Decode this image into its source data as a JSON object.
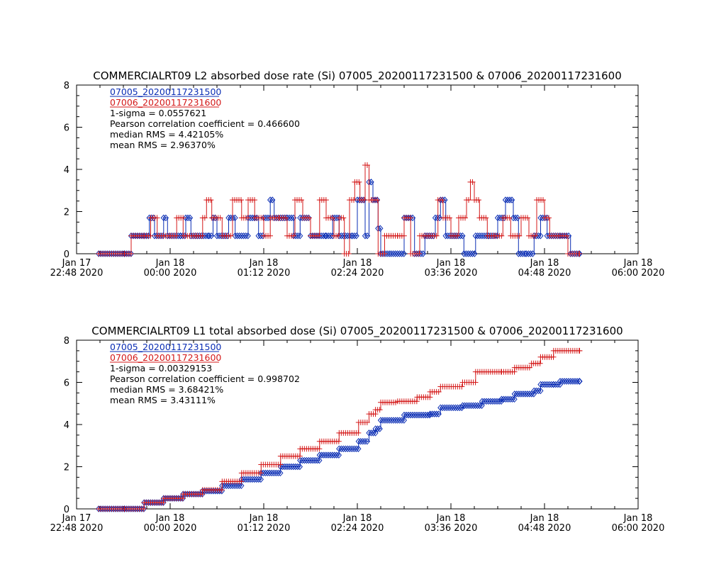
{
  "chart_data": [
    {
      "type": "line",
      "title": "COMMERCIALRT09 L2 absorbed dose rate (Si) 07005_20200117231500 & 07006_20200117231600",
      "ylim": [
        0,
        8
      ],
      "y_ticks": [
        "0",
        "2",
        "4",
        "6",
        "8"
      ],
      "x_range": [
        "2020-01-17 22:48",
        "2020-01-18 06:00"
      ],
      "x_ticks": [
        {
          "t": "2020-01-17 22:48",
          "line1": "Jan 17",
          "line2": "22:48 2020"
        },
        {
          "t": "2020-01-18 00:00",
          "line1": "Jan 18",
          "line2": "00:00 2020"
        },
        {
          "t": "2020-01-18 01:12",
          "line1": "Jan 18",
          "line2": "01:12 2020"
        },
        {
          "t": "2020-01-18 02:24",
          "line1": "Jan 18",
          "line2": "02:24 2020"
        },
        {
          "t": "2020-01-18 03:36",
          "line1": "Jan 18",
          "line2": "03:36 2020"
        },
        {
          "t": "2020-01-18 04:48",
          "line1": "Jan 18",
          "line2": "04:48 2020"
        },
        {
          "t": "2020-01-18 06:00",
          "line1": "Jan 18",
          "line2": "06:00 2020"
        }
      ],
      "annotations": [
        "1-sigma = 0.0557621",
        "Pearson correlation coefficient = 0.466600",
        "median RMS = 4.42105%",
        "mean RMS = 2.96370%"
      ],
      "series": [
        {
          "name": "07005_20200117231500",
          "color": "#0a2db4",
          "marker": "diamond",
          "points": [
            [
              "2020-01-17 23:05",
              0
            ],
            [
              "2020-01-17 23:25",
              0
            ],
            [
              "2020-01-17 23:30",
              0.85
            ],
            [
              "2020-01-17 23:40",
              0.85
            ],
            [
              "2020-01-17 23:44",
              1.7
            ],
            [
              "2020-01-17 23:48",
              0.85
            ],
            [
              "2020-01-17 23:55",
              1.7
            ],
            [
              "2020-01-17 23:58",
              0.85
            ],
            [
              "2020-01-18 00:08",
              0.85
            ],
            [
              "2020-01-18 00:12",
              1.7
            ],
            [
              "2020-01-18 00:16",
              0.85
            ],
            [
              "2020-01-18 00:30",
              0.85
            ],
            [
              "2020-01-18 00:33",
              1.7
            ],
            [
              "2020-01-18 00:36",
              0.85
            ],
            [
              "2020-01-18 00:45",
              1.7
            ],
            [
              "2020-01-18 00:50",
              0.85
            ],
            [
              "2020-01-18 01:00",
              1.7
            ],
            [
              "2020-01-18 01:05",
              1.7
            ],
            [
              "2020-01-18 01:08",
              0.85
            ],
            [
              "2020-01-18 01:12",
              1.7
            ],
            [
              "2020-01-18 01:17",
              2.55
            ],
            [
              "2020-01-18 01:20",
              1.7
            ],
            [
              "2020-01-18 01:30",
              1.7
            ],
            [
              "2020-01-18 01:35",
              0.85
            ],
            [
              "2020-01-18 01:40",
              1.7
            ],
            [
              "2020-01-18 01:48",
              0.85
            ],
            [
              "2020-01-18 02:00",
              0.85
            ],
            [
              "2020-01-18 02:05",
              1.7
            ],
            [
              "2020-01-18 02:10",
              0.85
            ],
            [
              "2020-01-18 02:20",
              0.85
            ],
            [
              "2020-01-18 02:24",
              2.55
            ],
            [
              "2020-01-18 02:30",
              0.85
            ],
            [
              "2020-01-18 02:33",
              3.4
            ],
            [
              "2020-01-18 02:36",
              2.55
            ],
            [
              "2020-01-18 02:40",
              1.2
            ],
            [
              "2020-01-18 02:42",
              0
            ],
            [
              "2020-01-18 02:50",
              0
            ],
            [
              "2020-01-18 03:00",
              1.7
            ],
            [
              "2020-01-18 03:08",
              0
            ],
            [
              "2020-01-18 03:16",
              0.85
            ],
            [
              "2020-01-18 03:24",
              1.7
            ],
            [
              "2020-01-18 03:28",
              2.55
            ],
            [
              "2020-01-18 03:32",
              0.85
            ],
            [
              "2020-01-18 03:40",
              0.85
            ],
            [
              "2020-01-18 03:46",
              0
            ],
            [
              "2020-01-18 03:55",
              0.85
            ],
            [
              "2020-01-18 04:05",
              0.85
            ],
            [
              "2020-01-18 04:12",
              1.7
            ],
            [
              "2020-01-18 04:18",
              2.55
            ],
            [
              "2020-01-18 04:24",
              1.7
            ],
            [
              "2020-01-18 04:28",
              0
            ],
            [
              "2020-01-18 04:34",
              0
            ],
            [
              "2020-01-18 04:40",
              0.85
            ],
            [
              "2020-01-18 04:45",
              1.7
            ],
            [
              "2020-01-18 04:50",
              0.85
            ],
            [
              "2020-01-18 05:00",
              0.85
            ],
            [
              "2020-01-18 05:08",
              0
            ],
            [
              "2020-01-18 05:15",
              0
            ]
          ]
        },
        {
          "name": "07006_20200117231600",
          "color": "#d41919",
          "marker": "plus",
          "points": [
            [
              "2020-01-17 23:05",
              0
            ],
            [
              "2020-01-17 23:25",
              0
            ],
            [
              "2020-01-17 23:30",
              0.85
            ],
            [
              "2020-01-17 23:40",
              0.85
            ],
            [
              "2020-01-17 23:45",
              1.7
            ],
            [
              "2020-01-17 23:50",
              0.85
            ],
            [
              "2020-01-18 00:00",
              0.85
            ],
            [
              "2020-01-18 00:05",
              1.7
            ],
            [
              "2020-01-18 00:10",
              0.85
            ],
            [
              "2020-01-18 00:20",
              0.85
            ],
            [
              "2020-01-18 00:25",
              1.7
            ],
            [
              "2020-01-18 00:28",
              2.55
            ],
            [
              "2020-01-18 00:32",
              1.7
            ],
            [
              "2020-01-18 00:40",
              0.85
            ],
            [
              "2020-01-18 00:48",
              2.55
            ],
            [
              "2020-01-18 00:55",
              1.7
            ],
            [
              "2020-01-18 01:00",
              2.55
            ],
            [
              "2020-01-18 01:05",
              1.7
            ],
            [
              "2020-01-18 01:12",
              0.85
            ],
            [
              "2020-01-18 01:17",
              1.7
            ],
            [
              "2020-01-18 01:24",
              1.7
            ],
            [
              "2020-01-18 01:30",
              0.85
            ],
            [
              "2020-01-18 01:36",
              2.55
            ],
            [
              "2020-01-18 01:42",
              1.7
            ],
            [
              "2020-01-18 01:48",
              0.85
            ],
            [
              "2020-01-18 01:55",
              2.55
            ],
            [
              "2020-01-18 02:00",
              1.7
            ],
            [
              "2020-01-18 02:06",
              0.85
            ],
            [
              "2020-01-18 02:10",
              1.7
            ],
            [
              "2020-01-18 02:14",
              0
            ],
            [
              "2020-01-18 02:18",
              2.55
            ],
            [
              "2020-01-18 02:22",
              3.4
            ],
            [
              "2020-01-18 02:26",
              2.55
            ],
            [
              "2020-01-18 02:30",
              4.2
            ],
            [
              "2020-01-18 02:33",
              2.55
            ],
            [
              "2020-01-18 02:36",
              2.55
            ],
            [
              "2020-01-18 02:40",
              0
            ],
            [
              "2020-01-18 02:45",
              0.85
            ],
            [
              "2020-01-18 02:55",
              0.85
            ],
            [
              "2020-01-18 03:00",
              1.7
            ],
            [
              "2020-01-18 03:05",
              0
            ],
            [
              "2020-01-18 03:12",
              0.85
            ],
            [
              "2020-01-18 03:20",
              0.85
            ],
            [
              "2020-01-18 03:26",
              2.55
            ],
            [
              "2020-01-18 03:30",
              1.7
            ],
            [
              "2020-01-18 03:36",
              0.85
            ],
            [
              "2020-01-18 03:42",
              1.7
            ],
            [
              "2020-01-18 03:48",
              2.55
            ],
            [
              "2020-01-18 03:51",
              3.4
            ],
            [
              "2020-01-18 03:54",
              2.55
            ],
            [
              "2020-01-18 03:58",
              1.7
            ],
            [
              "2020-01-18 04:04",
              0.85
            ],
            [
              "2020-01-18 04:10",
              0.85
            ],
            [
              "2020-01-18 04:16",
              1.7
            ],
            [
              "2020-01-18 04:22",
              0.85
            ],
            [
              "2020-01-18 04:30",
              1.7
            ],
            [
              "2020-01-18 04:36",
              0.85
            ],
            [
              "2020-01-18 04:42",
              2.55
            ],
            [
              "2020-01-18 04:48",
              1.7
            ],
            [
              "2020-01-18 04:52",
              0.85
            ],
            [
              "2020-01-18 05:00",
              0.85
            ],
            [
              "2020-01-18 05:06",
              0
            ],
            [
              "2020-01-18 05:15",
              0
            ]
          ]
        }
      ]
    },
    {
      "type": "line",
      "title": "COMMERCIALRT09 L1 total absorbed dose (Si) 07005_20200117231500 & 07006_20200117231600",
      "ylim": [
        0,
        8
      ],
      "y_ticks": [
        "0",
        "2",
        "4",
        "6",
        "8"
      ],
      "x_range": [
        "2020-01-17 22:48",
        "2020-01-18 06:00"
      ],
      "x_ticks": [
        {
          "t": "2020-01-17 22:48",
          "line1": "Jan 17",
          "line2": "22:48 2020"
        },
        {
          "t": "2020-01-18 00:00",
          "line1": "Jan 18",
          "line2": "00:00 2020"
        },
        {
          "t": "2020-01-18 01:12",
          "line1": "Jan 18",
          "line2": "01:12 2020"
        },
        {
          "t": "2020-01-18 02:24",
          "line1": "Jan 18",
          "line2": "02:24 2020"
        },
        {
          "t": "2020-01-18 03:36",
          "line1": "Jan 18",
          "line2": "03:36 2020"
        },
        {
          "t": "2020-01-18 04:48",
          "line1": "Jan 18",
          "line2": "04:48 2020"
        },
        {
          "t": "2020-01-18 06:00",
          "line1": "Jan 18",
          "line2": "06:00 2020"
        }
      ],
      "annotations": [
        "1-sigma = 0.00329153",
        "Pearson correlation coefficient = 0.998702",
        "median RMS = 3.68421%",
        "mean RMS = 3.43111%"
      ],
      "series": [
        {
          "name": "07005_20200117231500",
          "color": "#0a2db4",
          "marker": "diamond",
          "points": [
            [
              "2020-01-17 23:05",
              0
            ],
            [
              "2020-01-17 23:25",
              0
            ],
            [
              "2020-01-17 23:40",
              0.3
            ],
            [
              "2020-01-17 23:55",
              0.5
            ],
            [
              "2020-01-18 00:10",
              0.7
            ],
            [
              "2020-01-18 00:25",
              0.85
            ],
            [
              "2020-01-18 00:40",
              1.1
            ],
            [
              "2020-01-18 00:55",
              1.4
            ],
            [
              "2020-01-18 01:10",
              1.7
            ],
            [
              "2020-01-18 01:25",
              2.0
            ],
            [
              "2020-01-18 01:40",
              2.3
            ],
            [
              "2020-01-18 01:55",
              2.55
            ],
            [
              "2020-01-18 02:10",
              2.85
            ],
            [
              "2020-01-18 02:25",
              3.2
            ],
            [
              "2020-01-18 02:33",
              3.6
            ],
            [
              "2020-01-18 02:38",
              3.8
            ],
            [
              "2020-01-18 02:42",
              4.2
            ],
            [
              "2020-01-18 02:55",
              4.2
            ],
            [
              "2020-01-18 03:00",
              4.45
            ],
            [
              "2020-01-18 03:20",
              4.5
            ],
            [
              "2020-01-18 03:28",
              4.8
            ],
            [
              "2020-01-18 03:45",
              4.9
            ],
            [
              "2020-01-18 04:00",
              5.1
            ],
            [
              "2020-01-18 04:15",
              5.2
            ],
            [
              "2020-01-18 04:25",
              5.45
            ],
            [
              "2020-01-18 04:40",
              5.6
            ],
            [
              "2020-01-18 04:45",
              5.9
            ],
            [
              "2020-01-18 04:55",
              5.9
            ],
            [
              "2020-01-18 05:00",
              6.05
            ],
            [
              "2020-01-18 05:15",
              6.05
            ]
          ]
        },
        {
          "name": "07006_20200117231600",
          "color": "#d41919",
          "marker": "plus",
          "points": [
            [
              "2020-01-17 23:05",
              0
            ],
            [
              "2020-01-17 23:25",
              0
            ],
            [
              "2020-01-17 23:40",
              0.3
            ],
            [
              "2020-01-17 23:55",
              0.5
            ],
            [
              "2020-01-18 00:10",
              0.7
            ],
            [
              "2020-01-18 00:25",
              0.9
            ],
            [
              "2020-01-18 00:40",
              1.3
            ],
            [
              "2020-01-18 00:55",
              1.7
            ],
            [
              "2020-01-18 01:10",
              2.1
            ],
            [
              "2020-01-18 01:25",
              2.5
            ],
            [
              "2020-01-18 01:40",
              2.85
            ],
            [
              "2020-01-18 01:55",
              3.2
            ],
            [
              "2020-01-18 02:10",
              3.6
            ],
            [
              "2020-01-18 02:25",
              4.1
            ],
            [
              "2020-01-18 02:33",
              4.5
            ],
            [
              "2020-01-18 02:38",
              4.7
            ],
            [
              "2020-01-18 02:42",
              5.05
            ],
            [
              "2020-01-18 02:55",
              5.1
            ],
            [
              "2020-01-18 03:10",
              5.3
            ],
            [
              "2020-01-18 03:20",
              5.55
            ],
            [
              "2020-01-18 03:28",
              5.8
            ],
            [
              "2020-01-18 03:45",
              6.0
            ],
            [
              "2020-01-18 03:55",
              6.5
            ],
            [
              "2020-01-18 04:15",
              6.5
            ],
            [
              "2020-01-18 04:25",
              6.7
            ],
            [
              "2020-01-18 04:38",
              6.9
            ],
            [
              "2020-01-18 04:45",
              7.2
            ],
            [
              "2020-01-18 04:55",
              7.5
            ],
            [
              "2020-01-18 05:15",
              7.5
            ]
          ]
        }
      ]
    }
  ]
}
